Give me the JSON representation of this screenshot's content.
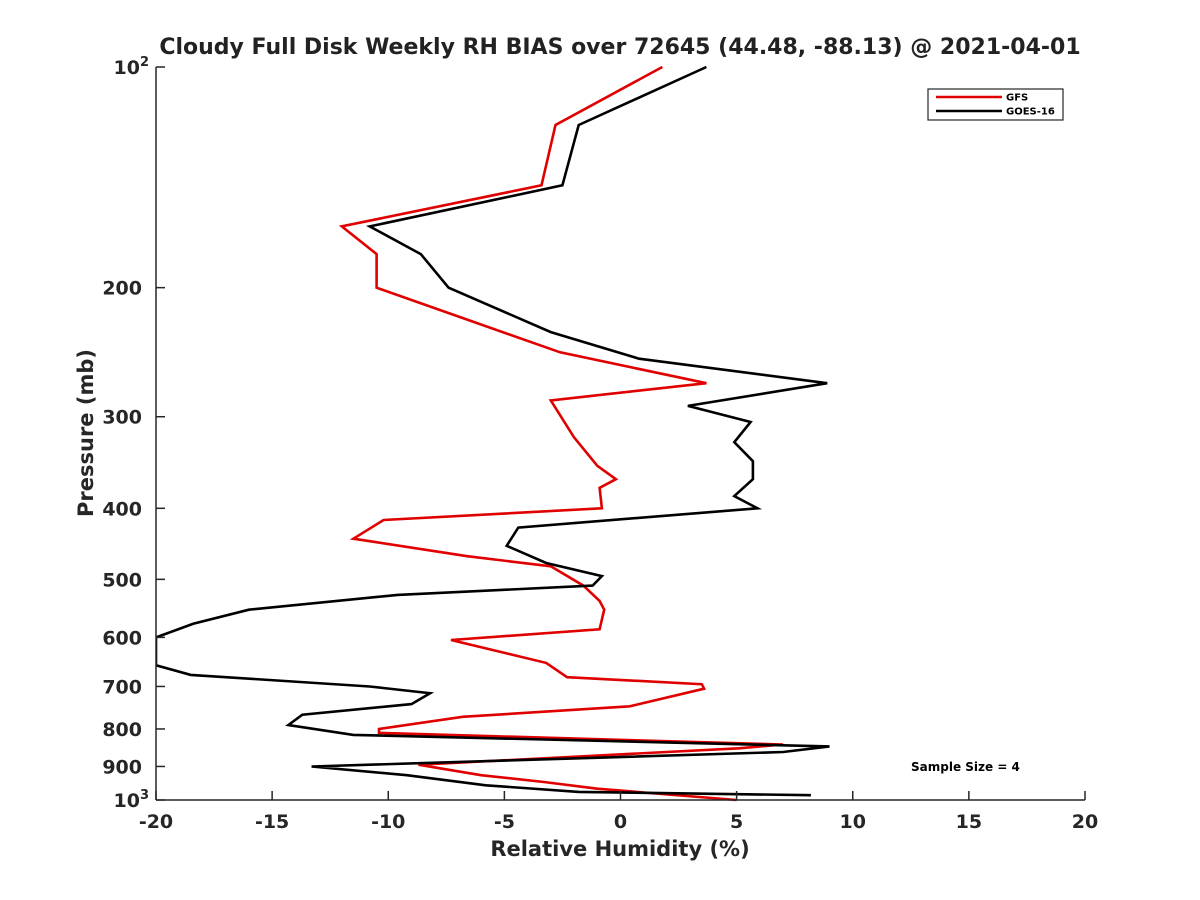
{
  "chart_data": {
    "type": "line",
    "title": "Cloudy Full Disk Weekly RH BIAS over 72645 (44.48, -88.13) @ 2021-04-01",
    "xlabel": "Relative Humidity (%)",
    "ylabel": "Pressure (mb)",
    "xlim": [
      -20,
      20
    ],
    "ylim": [
      100,
      1000
    ],
    "yscale": "log",
    "y_reversed": true,
    "grid": false,
    "legend_position": "top-right",
    "x_ticks": [
      "-20",
      "-15",
      "-10",
      "-5",
      "0",
      "5",
      "10",
      "15",
      "20"
    ],
    "y_ticks": [
      {
        "value": 100,
        "base": "10",
        "exp": "2"
      },
      {
        "value": 200,
        "label": "200"
      },
      {
        "value": 300,
        "label": "300"
      },
      {
        "value": 400,
        "label": "400"
      },
      {
        "value": 500,
        "label": "500"
      },
      {
        "value": 600,
        "label": "600"
      },
      {
        "value": 700,
        "label": "700"
      },
      {
        "value": 800,
        "label": "800"
      },
      {
        "value": 900,
        "label": "900"
      },
      {
        "value": 1000,
        "base": "10",
        "exp": "3"
      }
    ],
    "annotation": "Sample Size = 4",
    "series": [
      {
        "name": "GFS",
        "color": "#e00000",
        "points": [
          [
            1.8,
            100
          ],
          [
            -2.8,
            120
          ],
          [
            -3.4,
            145
          ],
          [
            -12.0,
            165
          ],
          [
            -10.5,
            180
          ],
          [
            -10.5,
            200
          ],
          [
            -6.8,
            220
          ],
          [
            -2.6,
            245
          ],
          [
            3.7,
            270
          ],
          [
            -3.0,
            285
          ],
          [
            -2.0,
            320
          ],
          [
            -1.0,
            350
          ],
          [
            -0.2,
            365
          ],
          [
            -0.9,
            375
          ],
          [
            -0.8,
            400
          ],
          [
            -10.2,
            415
          ],
          [
            -11.5,
            440
          ],
          [
            -6.6,
            465
          ],
          [
            -3.0,
            480
          ],
          [
            -1.6,
            510
          ],
          [
            -0.9,
            535
          ],
          [
            -0.7,
            550
          ],
          [
            -0.9,
            585
          ],
          [
            -7.3,
            605
          ],
          [
            -3.2,
            650
          ],
          [
            -2.3,
            680
          ],
          [
            3.5,
            695
          ],
          [
            3.6,
            705
          ],
          [
            0.4,
            745
          ],
          [
            -6.8,
            770
          ],
          [
            -10.4,
            800
          ],
          [
            -10.4,
            810
          ],
          [
            7.0,
            840
          ],
          [
            5.1,
            850
          ],
          [
            -8.7,
            895
          ],
          [
            -6.0,
            925
          ],
          [
            -3.3,
            945
          ],
          [
            -1.0,
            965
          ],
          [
            5.0,
            1000
          ]
        ]
      },
      {
        "name": "GOES-16",
        "color": "#000000",
        "points": [
          [
            3.7,
            100
          ],
          [
            -1.8,
            120
          ],
          [
            -2.5,
            145
          ],
          [
            -10.8,
            165
          ],
          [
            -8.6,
            180
          ],
          [
            -7.4,
            200
          ],
          [
            -3.0,
            230
          ],
          [
            0.8,
            250
          ],
          [
            8.9,
            270
          ],
          [
            2.9,
            290
          ],
          [
            5.6,
            305
          ],
          [
            4.9,
            325
          ],
          [
            5.7,
            345
          ],
          [
            5.7,
            365
          ],
          [
            4.9,
            385
          ],
          [
            5.9,
            400
          ],
          [
            -4.4,
            425
          ],
          [
            -4.9,
            450
          ],
          [
            -3.2,
            475
          ],
          [
            -0.8,
            495
          ],
          [
            -1.2,
            510
          ],
          [
            -9.6,
            525
          ],
          [
            -16.0,
            550
          ],
          [
            -18.4,
            575
          ],
          [
            -20.0,
            600
          ],
          [
            -20.0,
            655
          ],
          [
            -18.5,
            675
          ],
          [
            -10.8,
            700
          ],
          [
            -8.2,
            715
          ],
          [
            -9.0,
            740
          ],
          [
            -13.7,
            765
          ],
          [
            -14.3,
            790
          ],
          [
            -11.5,
            815
          ],
          [
            9.0,
            845
          ],
          [
            7.0,
            860
          ],
          [
            -13.3,
            900
          ],
          [
            -9.2,
            925
          ],
          [
            -5.8,
            955
          ],
          [
            -1.8,
            975
          ],
          [
            8.2,
            985
          ]
        ]
      }
    ]
  }
}
